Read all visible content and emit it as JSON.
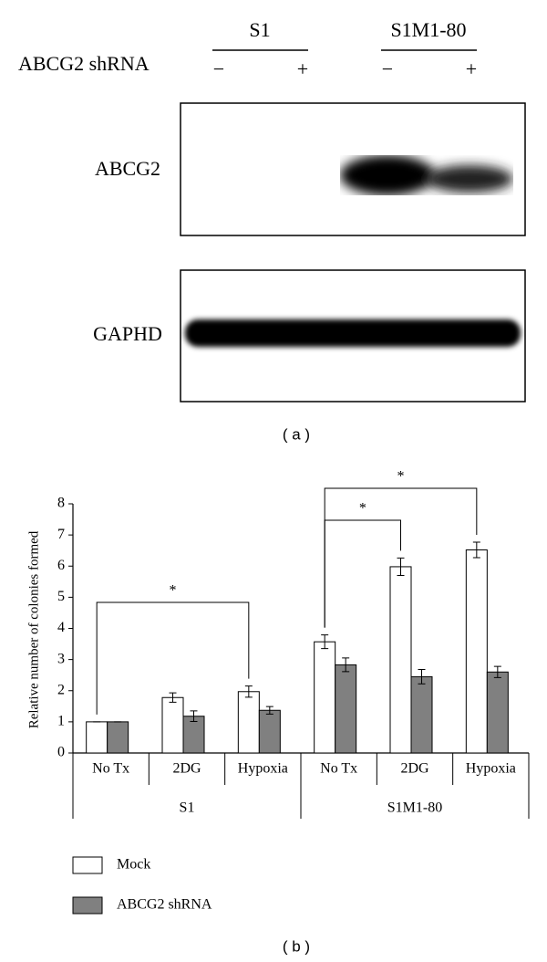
{
  "blot": {
    "groups": [
      "S1",
      "S1M1-80"
    ],
    "row_label": "ABCG2 shRNA",
    "lanes": [
      "−",
      "+",
      "−",
      "+"
    ],
    "bands": [
      "ABCG2",
      "GAPHD"
    ],
    "panel_label": "( a )"
  },
  "chart_data": {
    "type": "bar",
    "ylabel": "Relative number of colonies formed",
    "groups": [
      {
        "name": "S1",
        "categories": [
          "No Tx",
          "2DG",
          "Hypoxia"
        ]
      },
      {
        "name": "S1M1-80",
        "categories": [
          "No Tx",
          "2DG",
          "Hypoxia"
        ]
      }
    ],
    "series": [
      {
        "name": "Mock",
        "color": "#ffffff",
        "values": [
          1,
          1.78,
          1.97,
          3.57,
          5.98,
          6.52
        ],
        "errors": [
          0,
          0.15,
          0.18,
          0.22,
          0.28,
          0.25
        ]
      },
      {
        "name": "ABCG2 shRNA",
        "color": "#808080",
        "values": [
          1,
          1.18,
          1.37,
          2.83,
          2.45,
          2.6
        ],
        "errors": [
          0,
          0.17,
          0.12,
          0.22,
          0.23,
          0.18
        ]
      }
    ],
    "ylim": [
      0,
      8
    ],
    "yticks": [
      0,
      1,
      2,
      3,
      4,
      5,
      6,
      7,
      8
    ],
    "annotations": [
      {
        "from": 0,
        "to": 2,
        "label": "*"
      },
      {
        "from": 3,
        "to": 4,
        "label": "*"
      },
      {
        "from": 3,
        "to": 5,
        "label": "*"
      }
    ],
    "panel_label": "( b )"
  }
}
